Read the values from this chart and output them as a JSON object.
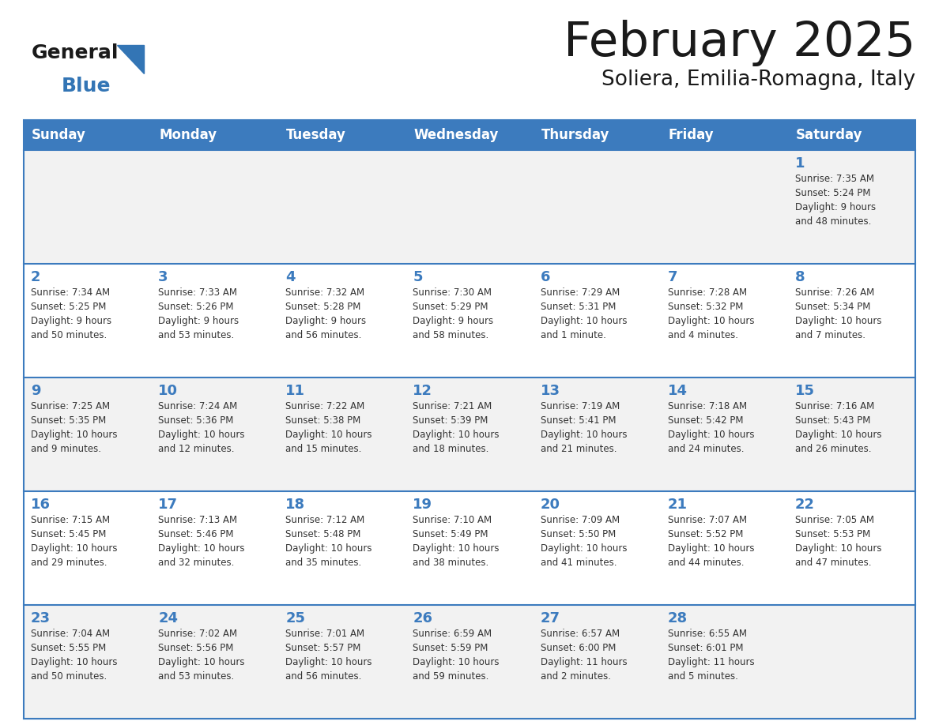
{
  "title": "February 2025",
  "subtitle": "Soliera, Emilia-Romagna, Italy",
  "days_of_week": [
    "Sunday",
    "Monday",
    "Tuesday",
    "Wednesday",
    "Thursday",
    "Friday",
    "Saturday"
  ],
  "header_bg": "#3C7BBE",
  "header_text": "#FFFFFF",
  "cell_bg_odd": "#F2F2F2",
  "cell_bg_even": "#FFFFFF",
  "day_num_color": "#3C7BBE",
  "info_color": "#333333",
  "border_color": "#3C7BBE",
  "logo_general_color": "#1a1a1a",
  "logo_blue_color": "#3375B5",
  "logo_triangle_color": "#3375B5",
  "calendar": [
    [
      null,
      null,
      null,
      null,
      null,
      null,
      {
        "day": "1",
        "sunrise": "7:35 AM",
        "sunset": "5:24 PM",
        "daylight": "9 hours\nand 48 minutes."
      }
    ],
    [
      {
        "day": "2",
        "sunrise": "7:34 AM",
        "sunset": "5:25 PM",
        "daylight": "9 hours\nand 50 minutes."
      },
      {
        "day": "3",
        "sunrise": "7:33 AM",
        "sunset": "5:26 PM",
        "daylight": "9 hours\nand 53 minutes."
      },
      {
        "day": "4",
        "sunrise": "7:32 AM",
        "sunset": "5:28 PM",
        "daylight": "9 hours\nand 56 minutes."
      },
      {
        "day": "5",
        "sunrise": "7:30 AM",
        "sunset": "5:29 PM",
        "daylight": "9 hours\nand 58 minutes."
      },
      {
        "day": "6",
        "sunrise": "7:29 AM",
        "sunset": "5:31 PM",
        "daylight": "10 hours\nand 1 minute."
      },
      {
        "day": "7",
        "sunrise": "7:28 AM",
        "sunset": "5:32 PM",
        "daylight": "10 hours\nand 4 minutes."
      },
      {
        "day": "8",
        "sunrise": "7:26 AM",
        "sunset": "5:34 PM",
        "daylight": "10 hours\nand 7 minutes."
      }
    ],
    [
      {
        "day": "9",
        "sunrise": "7:25 AM",
        "sunset": "5:35 PM",
        "daylight": "10 hours\nand 9 minutes."
      },
      {
        "day": "10",
        "sunrise": "7:24 AM",
        "sunset": "5:36 PM",
        "daylight": "10 hours\nand 12 minutes."
      },
      {
        "day": "11",
        "sunrise": "7:22 AM",
        "sunset": "5:38 PM",
        "daylight": "10 hours\nand 15 minutes."
      },
      {
        "day": "12",
        "sunrise": "7:21 AM",
        "sunset": "5:39 PM",
        "daylight": "10 hours\nand 18 minutes."
      },
      {
        "day": "13",
        "sunrise": "7:19 AM",
        "sunset": "5:41 PM",
        "daylight": "10 hours\nand 21 minutes."
      },
      {
        "day": "14",
        "sunrise": "7:18 AM",
        "sunset": "5:42 PM",
        "daylight": "10 hours\nand 24 minutes."
      },
      {
        "day": "15",
        "sunrise": "7:16 AM",
        "sunset": "5:43 PM",
        "daylight": "10 hours\nand 26 minutes."
      }
    ],
    [
      {
        "day": "16",
        "sunrise": "7:15 AM",
        "sunset": "5:45 PM",
        "daylight": "10 hours\nand 29 minutes."
      },
      {
        "day": "17",
        "sunrise": "7:13 AM",
        "sunset": "5:46 PM",
        "daylight": "10 hours\nand 32 minutes."
      },
      {
        "day": "18",
        "sunrise": "7:12 AM",
        "sunset": "5:48 PM",
        "daylight": "10 hours\nand 35 minutes."
      },
      {
        "day": "19",
        "sunrise": "7:10 AM",
        "sunset": "5:49 PM",
        "daylight": "10 hours\nand 38 minutes."
      },
      {
        "day": "20",
        "sunrise": "7:09 AM",
        "sunset": "5:50 PM",
        "daylight": "10 hours\nand 41 minutes."
      },
      {
        "day": "21",
        "sunrise": "7:07 AM",
        "sunset": "5:52 PM",
        "daylight": "10 hours\nand 44 minutes."
      },
      {
        "day": "22",
        "sunrise": "7:05 AM",
        "sunset": "5:53 PM",
        "daylight": "10 hours\nand 47 minutes."
      }
    ],
    [
      {
        "day": "23",
        "sunrise": "7:04 AM",
        "sunset": "5:55 PM",
        "daylight": "10 hours\nand 50 minutes."
      },
      {
        "day": "24",
        "sunrise": "7:02 AM",
        "sunset": "5:56 PM",
        "daylight": "10 hours\nand 53 minutes."
      },
      {
        "day": "25",
        "sunrise": "7:01 AM",
        "sunset": "5:57 PM",
        "daylight": "10 hours\nand 56 minutes."
      },
      {
        "day": "26",
        "sunrise": "6:59 AM",
        "sunset": "5:59 PM",
        "daylight": "10 hours\nand 59 minutes."
      },
      {
        "day": "27",
        "sunrise": "6:57 AM",
        "sunset": "6:00 PM",
        "daylight": "11 hours\nand 2 minutes."
      },
      {
        "day": "28",
        "sunrise": "6:55 AM",
        "sunset": "6:01 PM",
        "daylight": "11 hours\nand 5 minutes."
      },
      null
    ]
  ]
}
